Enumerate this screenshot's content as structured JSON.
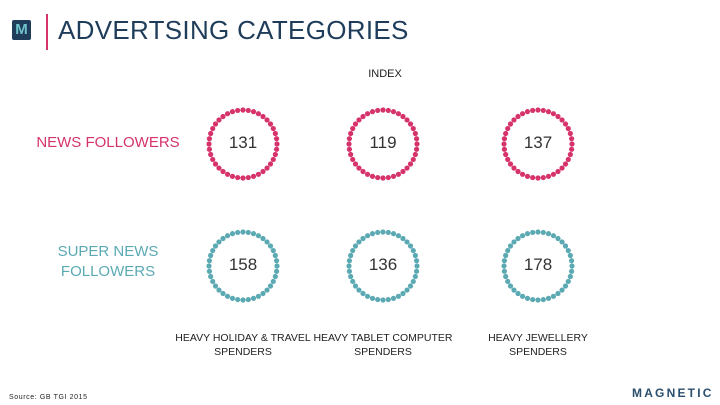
{
  "header": {
    "logo_letter": "M",
    "title": "ADVERTSING CATEGORIES"
  },
  "index_label": "INDEX",
  "rows": [
    {
      "label": "NEWS FOLLOWERS",
      "color": "#d6336c",
      "values": [
        "131",
        "119",
        "137"
      ]
    },
    {
      "label": "SUPER NEWS FOLLOWERS",
      "color": "#5ba9b3",
      "values": [
        "158",
        "136",
        "178"
      ]
    }
  ],
  "columns": [
    {
      "label": "HEAVY HOLIDAY & TRAVEL SPENDERS"
    },
    {
      "label": "HEAVY TABLET COMPUTER SPENDERS"
    },
    {
      "label": "HEAVY JEWELLERY SPENDERS"
    }
  ],
  "footer": {
    "source": "Source: GB TGI 2015",
    "brand": "MAGNETIC"
  }
}
